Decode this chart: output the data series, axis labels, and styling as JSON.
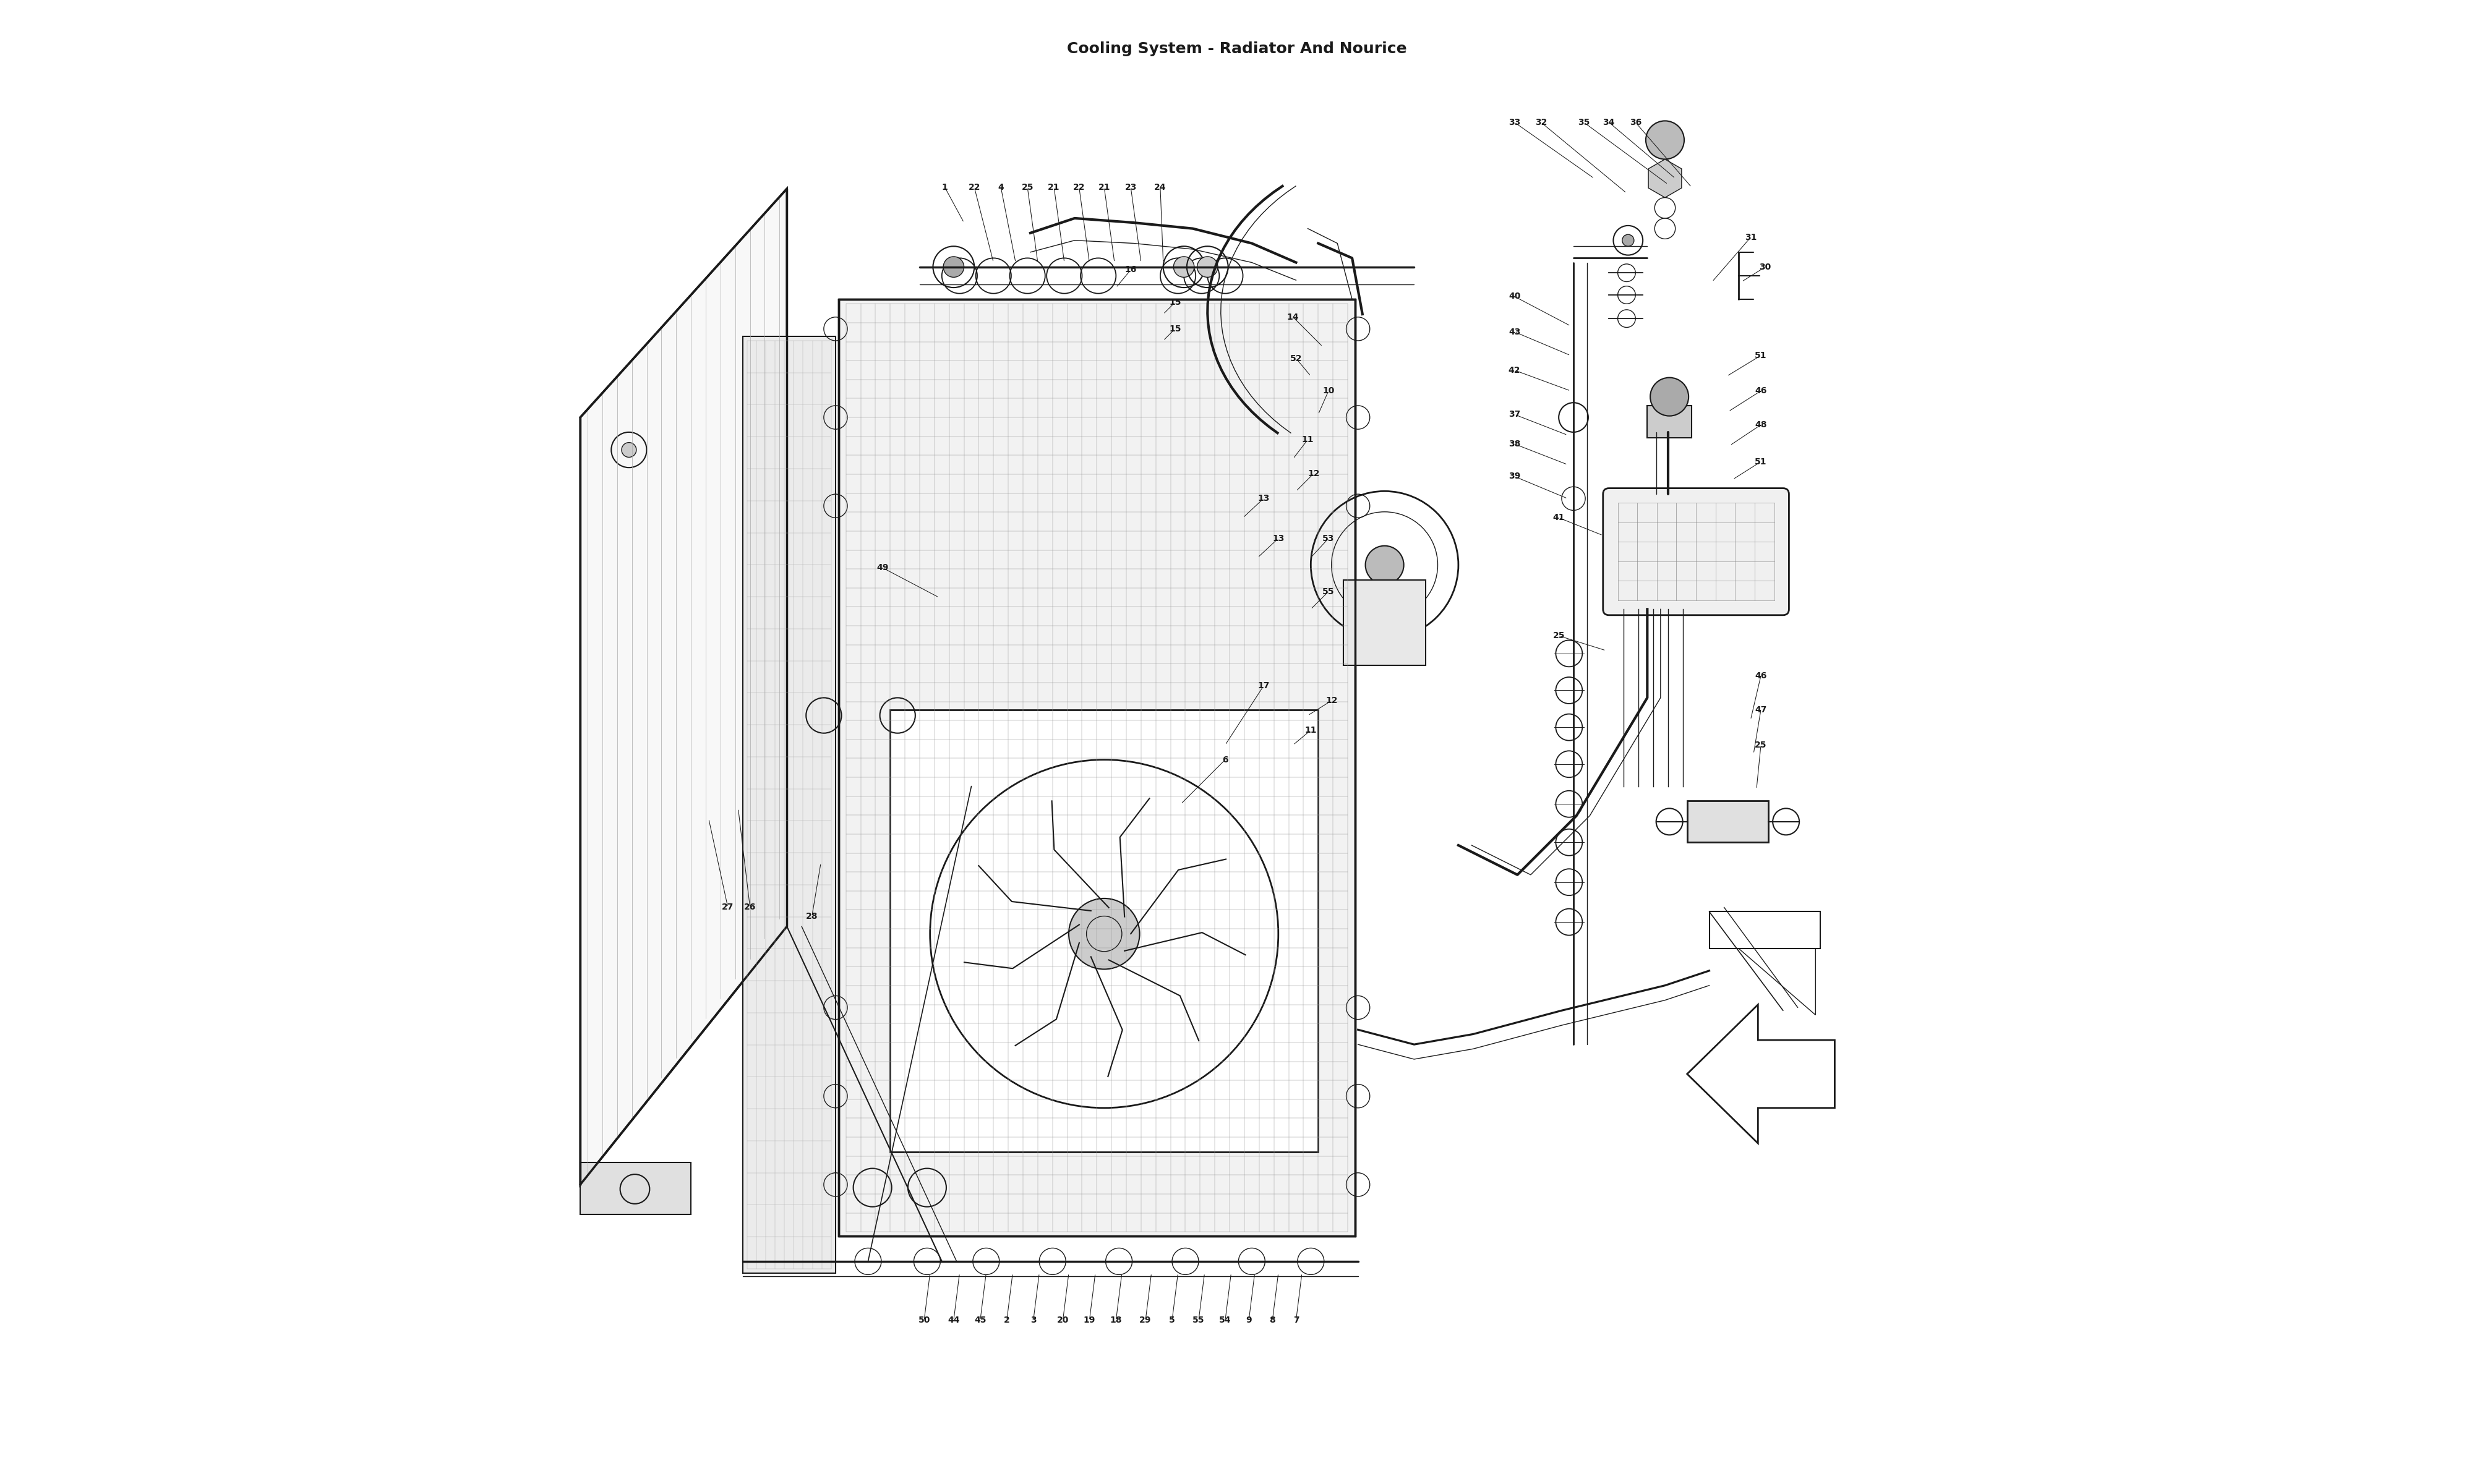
{
  "title": "Cooling System - Radiator And Nourice",
  "bg_color": "#ffffff",
  "line_color": "#1a1a1a",
  "fig_width": 40,
  "fig_height": 24
}
